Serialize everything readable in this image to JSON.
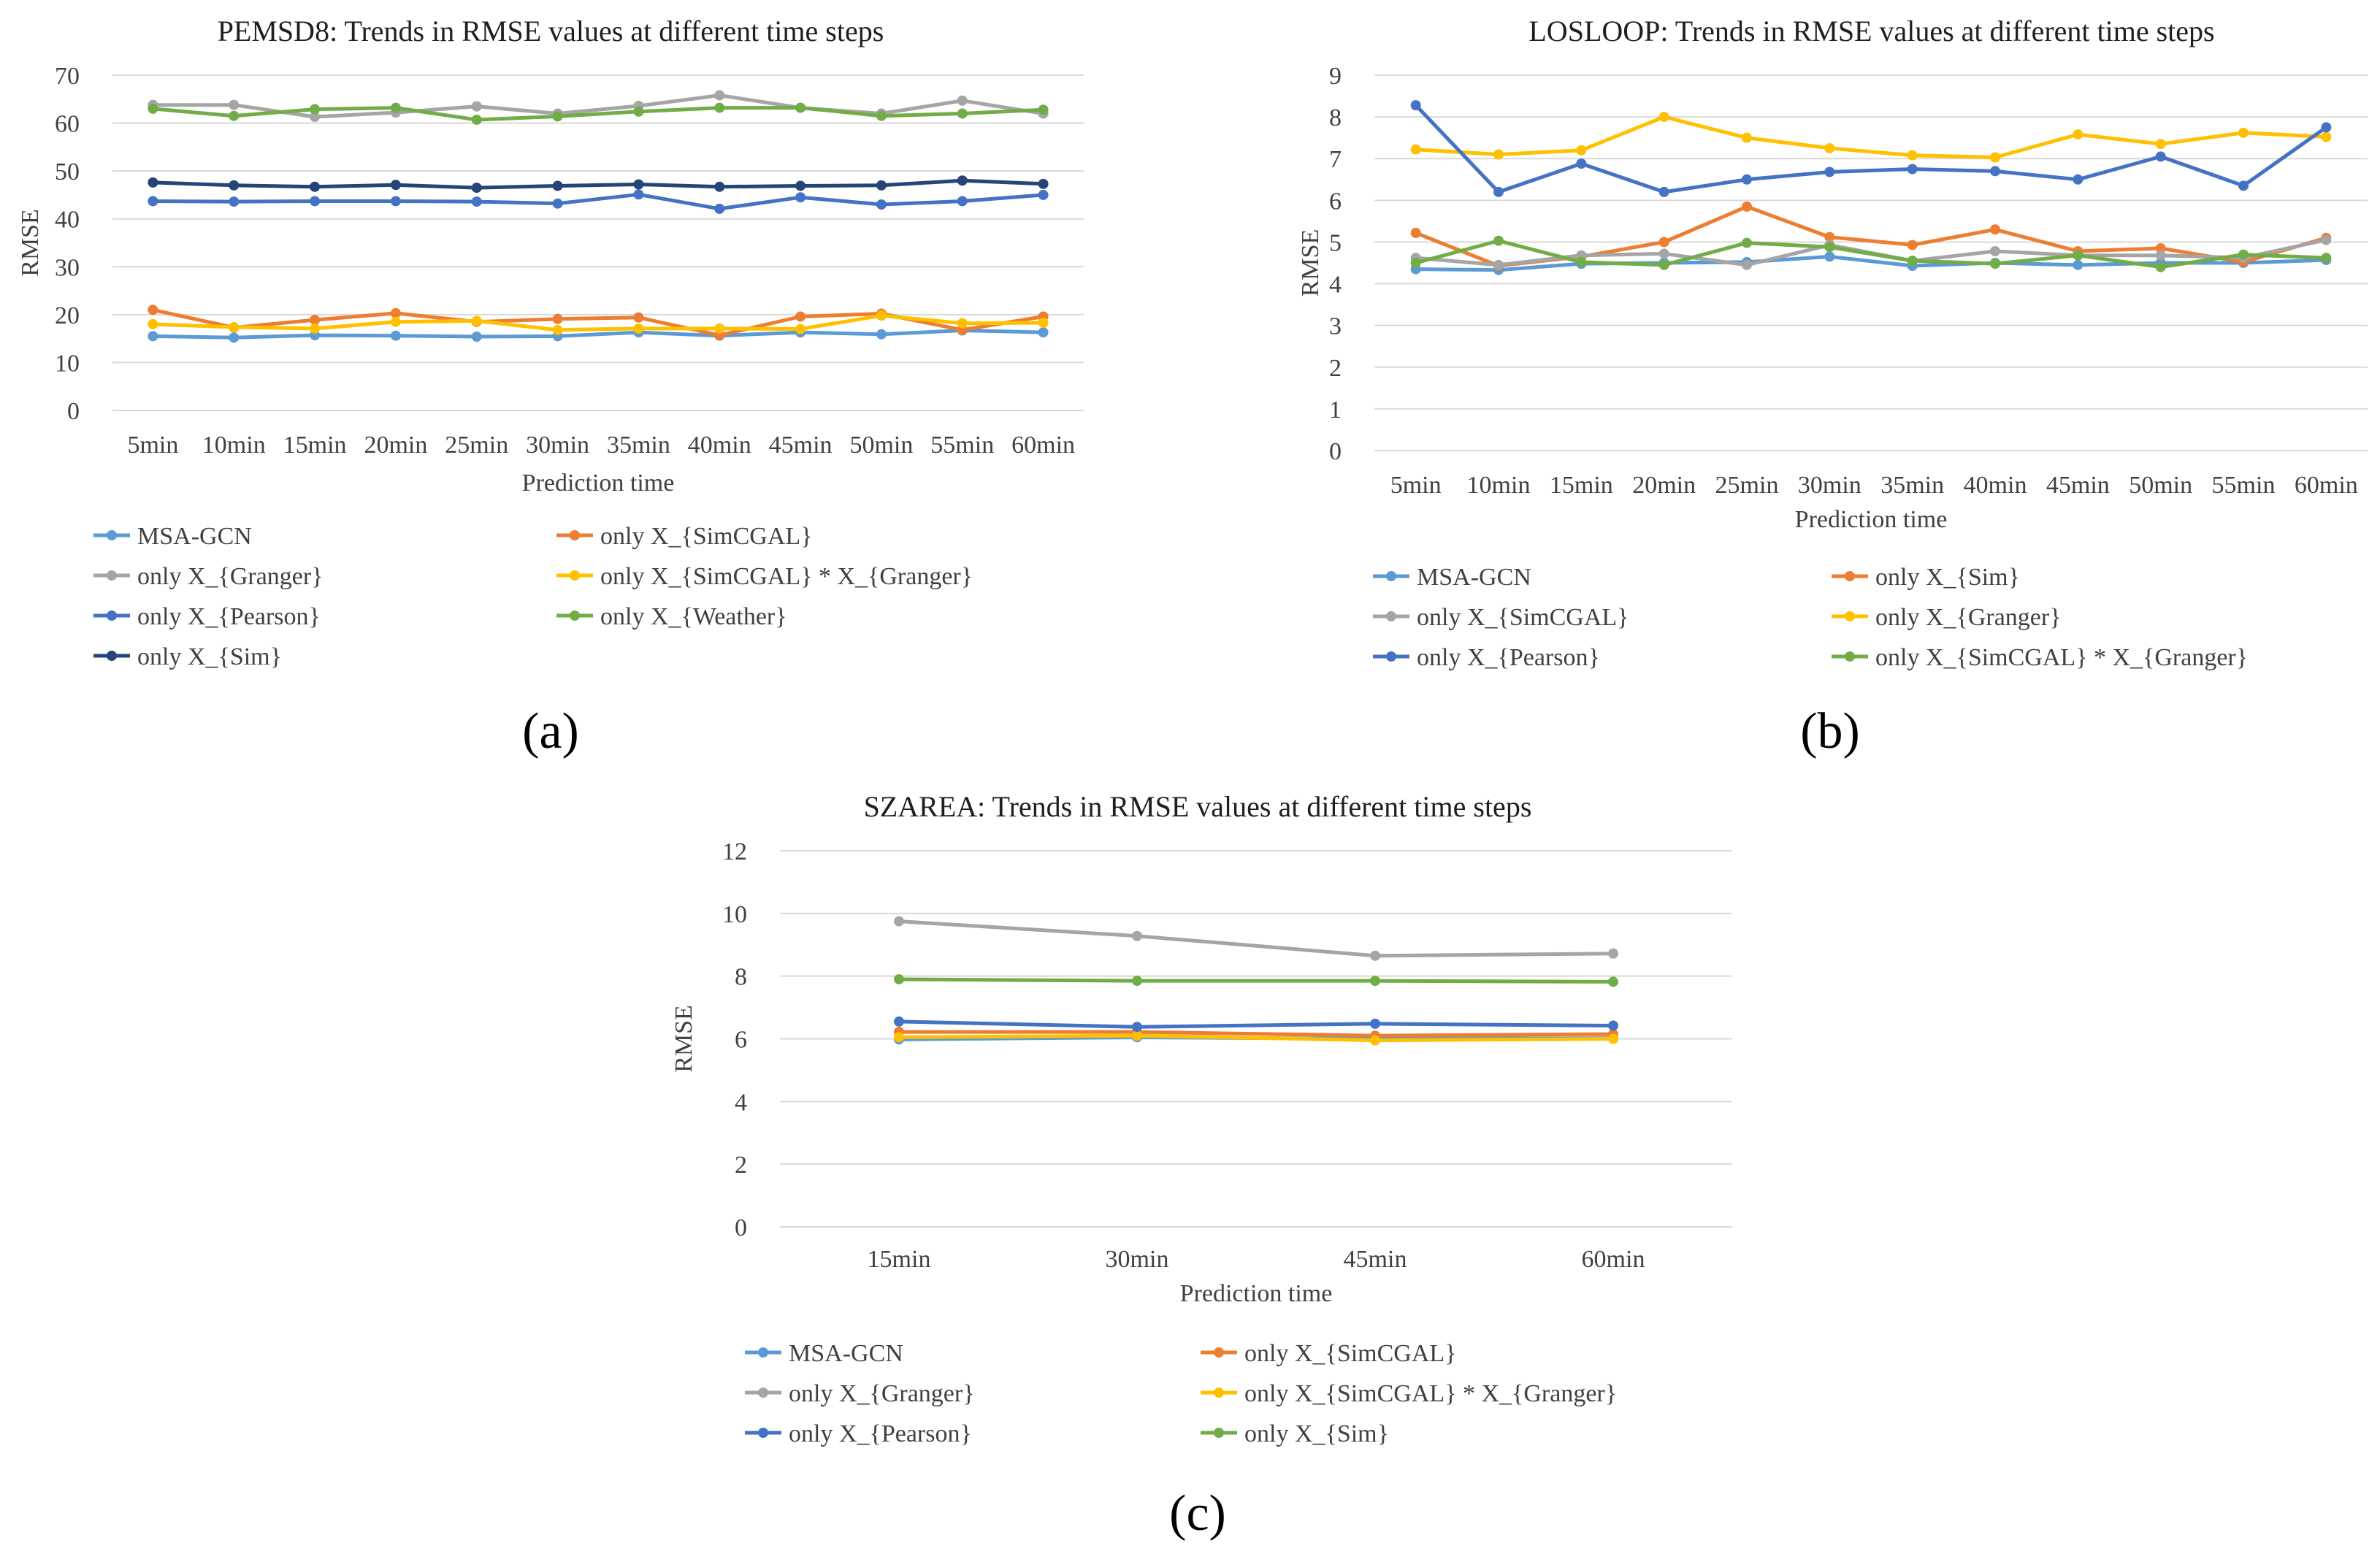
{
  "chart_data": [
    {
      "type": "line",
      "panel_label": "(a)",
      "title": "PEMSD8: Trends in RMSE values at different time steps",
      "xlabel": "Prediction time",
      "ylabel": "RMSE",
      "ylim": [
        0,
        70
      ],
      "yticks": [
        "0",
        "10",
        "20",
        "30",
        "40",
        "50",
        "60",
        "70"
      ],
      "categories": [
        "5min",
        "10min",
        "15min",
        "20min",
        "25min",
        "30min",
        "35min",
        "40min",
        "45min",
        "50min",
        "55min",
        "60min"
      ],
      "grid": true,
      "legend_position": "bottom",
      "series": [
        {
          "name": "MSA-GCN",
          "color": "#5B9BD5",
          "values": [
            15.5,
            15.2,
            15.7,
            15.6,
            15.4,
            15.5,
            16.3,
            15.6,
            16.3,
            15.9,
            16.7,
            16.3
          ]
        },
        {
          "name": "only X_{SimCGAL}",
          "color": "#ED7D31",
          "values": [
            21.0,
            17.3,
            18.9,
            20.3,
            18.5,
            19.1,
            19.4,
            15.7,
            19.6,
            20.2,
            16.8,
            19.6
          ]
        },
        {
          "name": "only X_{Granger}",
          "color": "#A5A5A5",
          "values": [
            63.8,
            63.8,
            61.3,
            62.2,
            63.5,
            62.0,
            63.6,
            65.8,
            63.2,
            62.0,
            64.7,
            62.0
          ]
        },
        {
          "name": "only X_{SimCGAL} * X_{Granger}",
          "color": "#FFC000",
          "values": [
            18.0,
            17.4,
            17.1,
            18.5,
            18.7,
            16.8,
            17.1,
            17.1,
            17.0,
            19.8,
            18.2,
            18.3
          ]
        },
        {
          "name": "only X_{Pearson}",
          "color": "#4472C4",
          "values": [
            43.7,
            43.6,
            43.7,
            43.7,
            43.6,
            43.2,
            45.1,
            42.1,
            44.5,
            43.0,
            43.7,
            45.0
          ]
        },
        {
          "name": "only X_{Weather}",
          "color": "#70AD47",
          "values": [
            63.0,
            61.5,
            62.9,
            63.2,
            60.7,
            61.4,
            62.4,
            63.2,
            63.2,
            61.5,
            62.0,
            62.8
          ]
        },
        {
          "name": "only X_{Sim}",
          "color": "#264478",
          "values": [
            47.6,
            47.0,
            46.7,
            47.1,
            46.5,
            46.9,
            47.2,
            46.7,
            46.9,
            47.0,
            48.0,
            47.3
          ]
        }
      ]
    },
    {
      "type": "line",
      "panel_label": "(b)",
      "title": "LOSLOOP: Trends in RMSE values at different time steps",
      "xlabel": "Prediction time",
      "ylabel": "RMSE",
      "ylim": [
        0,
        9
      ],
      "yticks": [
        "0",
        "1",
        "2",
        "3",
        "4",
        "5",
        "6",
        "7",
        "8",
        "9"
      ],
      "categories": [
        "5min",
        "10min",
        "15min",
        "20min",
        "25min",
        "30min",
        "35min",
        "40min",
        "45min",
        "50min",
        "55min",
        "60min"
      ],
      "grid": true,
      "legend_position": "bottom",
      "series": [
        {
          "name": "MSA-GCN",
          "color": "#5B9BD5",
          "values": [
            4.35,
            4.33,
            4.48,
            4.5,
            4.52,
            4.65,
            4.43,
            4.5,
            4.45,
            4.5,
            4.5,
            4.57
          ]
        },
        {
          "name": "only X_{Sim}",
          "color": "#ED7D31",
          "values": [
            5.22,
            4.43,
            4.65,
            5.0,
            5.85,
            5.12,
            4.93,
            5.3,
            4.78,
            4.85,
            4.52,
            5.1
          ]
        },
        {
          "name": "only X_{SimCGAL}",
          "color": "#A5A5A5",
          "values": [
            4.62,
            4.45,
            4.68,
            4.72,
            4.45,
            4.93,
            4.55,
            4.78,
            4.68,
            4.68,
            4.62,
            5.05
          ]
        },
        {
          "name": "only X_{Granger}",
          "color": "#FFC000",
          "values": [
            7.22,
            7.1,
            7.2,
            8.0,
            7.5,
            7.25,
            7.08,
            7.03,
            7.58,
            7.35,
            7.62,
            7.52
          ]
        },
        {
          "name": "only X_{Pearson}",
          "color": "#4472C4",
          "values": [
            8.28,
            6.2,
            6.88,
            6.2,
            6.5,
            6.68,
            6.75,
            6.7,
            6.5,
            7.05,
            6.35,
            7.75
          ]
        },
        {
          "name": "only X_{SimCGAL} * X_{Granger}",
          "color": "#70AD47",
          "values": [
            4.5,
            5.03,
            4.52,
            4.45,
            4.98,
            4.88,
            4.55,
            4.48,
            4.68,
            4.4,
            4.7,
            4.62
          ]
        }
      ]
    },
    {
      "type": "line",
      "panel_label": "(c)",
      "title": "SZAREA: Trends in RMSE values at different time steps",
      "xlabel": "Prediction time",
      "ylabel": "RMSE",
      "ylim": [
        0,
        12
      ],
      "yticks": [
        "0",
        "2",
        "4",
        "6",
        "8",
        "10",
        "12"
      ],
      "categories": [
        "15min",
        "30min",
        "45min",
        "60min"
      ],
      "grid": true,
      "legend_position": "bottom",
      "series": [
        {
          "name": "MSA-GCN",
          "color": "#5B9BD5",
          "values": [
            5.98,
            6.05,
            6.0,
            6.02
          ]
        },
        {
          "name": "only X_{SimCGAL}",
          "color": "#ED7D31",
          "values": [
            6.22,
            6.22,
            6.1,
            6.15
          ]
        },
        {
          "name": "only X_{Granger}",
          "color": "#A5A5A5",
          "values": [
            9.75,
            9.28,
            8.65,
            8.72
          ]
        },
        {
          "name": "only X_{SimCGAL} * X_{Granger}",
          "color": "#FFC000",
          "values": [
            6.05,
            6.1,
            5.95,
            6.0
          ]
        },
        {
          "name": "only X_{Pearson}",
          "color": "#4472C4",
          "values": [
            6.55,
            6.38,
            6.48,
            6.42
          ]
        },
        {
          "name": "only X_{Sim}",
          "color": "#70AD47",
          "values": [
            7.9,
            7.85,
            7.85,
            7.82
          ]
        }
      ]
    }
  ]
}
